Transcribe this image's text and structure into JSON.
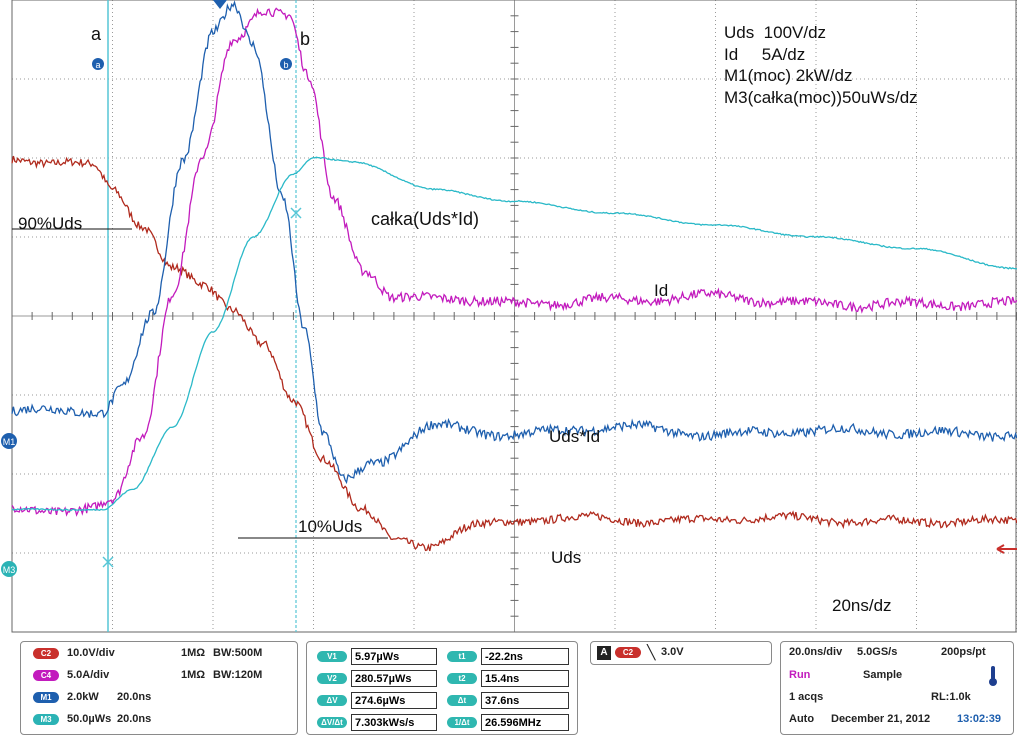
{
  "annotations": {
    "cursor_a_label": "a",
    "cursor_b_label": "b",
    "cursor_a_marker": "a",
    "cursor_b_marker": "b",
    "uds_90": "90%Uds",
    "uds_10": "10%Uds",
    "integral_label": "całka(Uds*Id)",
    "id_label": "Id",
    "power_label": "Uds*Id",
    "uds_label": "Uds",
    "timebase_label": "20ns/dz"
  },
  "scale_info": [
    "Uds  100V/dz",
    "Id     5A/dz",
    "M1(moc) 2kW/dz",
    "M3(całka(moc))50uWs/dz"
  ],
  "markers": {
    "m1": "M1",
    "m3": "M3"
  },
  "channels": [
    {
      "chip": "C2",
      "scale": "10.0V/div",
      "imp": "1MΩ",
      "bw": "BW:500M",
      "color": "#c9302c"
    },
    {
      "chip": "C4",
      "scale": "5.0A/div",
      "imp": "1MΩ",
      "bw": "BW:120M",
      "color": "#c21bbd"
    },
    {
      "chip": "M1",
      "scale": "2.0kW",
      "time": "20.0ns",
      "color": "#1e5fae"
    },
    {
      "chip": "M3",
      "scale": "50.0µWs",
      "time": "20.0ns",
      "color": "#2bb3b5"
    }
  ],
  "measurements": {
    "left": [
      {
        "label": "V1",
        "value": "5.97µWs"
      },
      {
        "label": "V2",
        "value": "280.57µWs"
      },
      {
        "label": "ΔV",
        "value": "274.6µWs"
      },
      {
        "label": "ΔV/Δt",
        "value": "7.303kWs/s"
      }
    ],
    "right": [
      {
        "label": "t1",
        "value": "-22.2ns"
      },
      {
        "label": "t2",
        "value": "15.4ns"
      },
      {
        "label": "Δt",
        "value": "37.6ns"
      },
      {
        "label": "1/Δt",
        "value": "26.596MHz"
      }
    ]
  },
  "trigger": {
    "label": "A",
    "channel": "C2",
    "level": "3.0V"
  },
  "acquisition": {
    "timebase": "20.0ns/div",
    "sample_rate": "5.0GS/s",
    "resolution": "200ps/pt",
    "state": "Run",
    "mode": "Sample",
    "acqs": "1 acqs",
    "record_length": "RL:1.0k",
    "trigger_mode": "Auto",
    "date": "December 21, 2012",
    "time": "13:02:39"
  },
  "chart_data": {
    "type": "line",
    "xlabel": "",
    "ylabel": "",
    "xlim": [
      0,
      10
    ],
    "ylim": [
      -4,
      4
    ],
    "grid": true,
    "series": [
      {
        "name": "Uds",
        "color": "#b02a1d",
        "points": [
          [
            0,
            1.98
          ],
          [
            0.5,
            1.95
          ],
          [
            0.8,
            1.9
          ],
          [
            1.0,
            1.6
          ],
          [
            1.3,
            1.15
          ],
          [
            1.6,
            0.6
          ],
          [
            1.9,
            0.38
          ],
          [
            2.2,
            0.1
          ],
          [
            2.5,
            -0.35
          ],
          [
            2.8,
            -1.1
          ],
          [
            3.1,
            -1.8
          ],
          [
            3.5,
            -2.45
          ],
          [
            3.8,
            -2.85
          ],
          [
            4.1,
            -2.92
          ],
          [
            4.6,
            -2.65
          ],
          [
            5.5,
            -2.55
          ],
          [
            6.5,
            -2.6
          ],
          [
            7.5,
            -2.55
          ],
          [
            8.5,
            -2.6
          ],
          [
            10,
            -2.6
          ]
        ]
      },
      {
        "name": "Id",
        "color": "#c21bbd",
        "points": [
          [
            0,
            -2.45
          ],
          [
            0.8,
            -2.45
          ],
          [
            1.0,
            -2.35
          ],
          [
            1.3,
            -1.5
          ],
          [
            1.6,
            0.3
          ],
          [
            1.9,
            2.0
          ],
          [
            2.2,
            3.5
          ],
          [
            2.5,
            3.9
          ],
          [
            2.75,
            3.8
          ],
          [
            2.95,
            3.0
          ],
          [
            3.2,
            1.5
          ],
          [
            3.5,
            0.6
          ],
          [
            3.8,
            0.2
          ],
          [
            4.3,
            0.25
          ],
          [
            4.9,
            0.15
          ],
          [
            6,
            0.2
          ],
          [
            7,
            0.25
          ],
          [
            8,
            0.15
          ],
          [
            10,
            0.15
          ]
        ]
      },
      {
        "name": "Uds*Id",
        "color": "#1e5fae",
        "points": [
          [
            0,
            -1.2
          ],
          [
            0.9,
            -1.2
          ],
          [
            1.1,
            -0.9
          ],
          [
            1.4,
            0
          ],
          [
            1.7,
            2.0
          ],
          [
            2.0,
            3.6
          ],
          [
            2.2,
            3.92
          ],
          [
            2.4,
            3.4
          ],
          [
            2.7,
            1.5
          ],
          [
            2.9,
            -0.1
          ],
          [
            3.1,
            -1.5
          ],
          [
            3.3,
            -2.1
          ],
          [
            3.6,
            -1.85
          ],
          [
            4.2,
            -1.4
          ],
          [
            5,
            -1.5
          ],
          [
            6,
            -1.4
          ],
          [
            7,
            -1.5
          ],
          [
            8,
            -1.45
          ],
          [
            10,
            -1.5
          ]
        ]
      },
      {
        "name": "całka(Uds*Id)",
        "color": "#2bb9c8",
        "points": [
          [
            0,
            -2.45
          ],
          [
            0.9,
            -2.45
          ],
          [
            1.2,
            -2.2
          ],
          [
            1.6,
            -1.4
          ],
          [
            2.0,
            -0.2
          ],
          [
            2.4,
            1.0
          ],
          [
            2.8,
            1.8
          ],
          [
            3.0,
            2.0
          ],
          [
            3.4,
            1.95
          ],
          [
            4.2,
            1.6
          ],
          [
            5,
            1.45
          ],
          [
            6,
            1.3
          ],
          [
            7,
            1.15
          ],
          [
            8,
            1.0
          ],
          [
            9,
            0.85
          ],
          [
            10,
            0.6
          ]
        ]
      }
    ]
  }
}
